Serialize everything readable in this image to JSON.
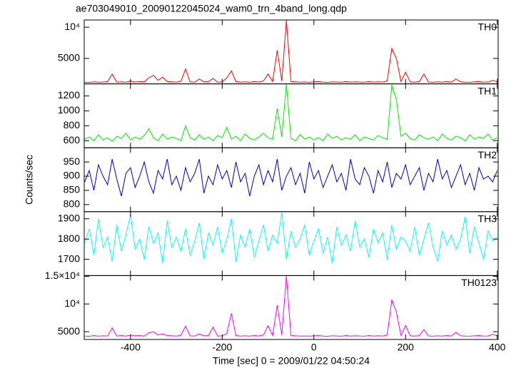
{
  "chart_data": {
    "type": "line",
    "title": "ae703049010_20090122045024_wam0_trn_4band_long.qdp",
    "xlabel": "Time [sec] 0 = 2009/01/22 04:50:24",
    "ylabel": "Counts/sec",
    "xlim": [
      -501,
      402
    ],
    "xticks": [
      -400,
      -200,
      0,
      200,
      400
    ],
    "x": [
      -500,
      -490,
      -480,
      -470,
      -460,
      -450,
      -440,
      -430,
      -420,
      -410,
      -400,
      -390,
      -380,
      -370,
      -360,
      -350,
      -340,
      -330,
      -320,
      -310,
      -300,
      -290,
      -280,
      -270,
      -260,
      -250,
      -240,
      -230,
      -220,
      -210,
      -200,
      -190,
      -180,
      -170,
      -160,
      -150,
      -140,
      -130,
      -120,
      -110,
      -100,
      -90,
      -80,
      -70,
      -60,
      -50,
      -40,
      -30,
      -20,
      -10,
      0,
      10,
      20,
      30,
      40,
      50,
      60,
      70,
      80,
      90,
      100,
      110,
      120,
      130,
      140,
      150,
      160,
      170,
      180,
      190,
      200,
      210,
      220,
      230,
      240,
      250,
      260,
      270,
      280,
      290,
      300,
      310,
      320,
      330,
      340,
      350,
      360,
      370,
      380,
      390,
      400
    ],
    "series": [
      {
        "name": "TH0",
        "color": "#ff0000",
        "ylim": [
          930,
          11160
        ],
        "yticks": [
          5000,
          {
            "value": 10000,
            "label": "10⁴"
          }
        ],
        "values": [
          1200,
          1150,
          1250,
          1180,
          1220,
          1300,
          2500,
          1200,
          1250,
          1180,
          1400,
          1220,
          1300,
          1250,
          1900,
          2300,
          1500,
          2000,
          1300,
          1250,
          1200,
          1350,
          3300,
          1250,
          1200,
          1700,
          1250,
          1300,
          1800,
          1200,
          1250,
          1900,
          3000,
          1300,
          1200,
          1250,
          1180,
          1300,
          1220,
          1400,
          2500,
          1300,
          6300,
          1400,
          11100,
          1300,
          1250,
          1200,
          1220,
          1180,
          1250,
          1300,
          1200,
          1150,
          1250,
          1220,
          1180,
          1300,
          1200,
          1250,
          1220,
          1180,
          1300,
          1200,
          1250,
          1220,
          1400,
          6600,
          5000,
          1300,
          2800,
          1250,
          1200,
          1300,
          2500,
          1220,
          1180,
          1250,
          1200,
          1300,
          1220,
          1700,
          1250,
          1200,
          1180,
          1250,
          1300,
          1200,
          1220,
          1500,
          1250
        ]
      },
      {
        "name": "TH1",
        "color": "#00ee00",
        "ylim": [
          505,
          1362
        ],
        "yticks": [
          600,
          800,
          1000,
          1200
        ],
        "values": [
          620,
          650,
          600,
          680,
          610,
          640,
          590,
          660,
          630,
          700,
          610,
          650,
          620,
          670,
          760,
          640,
          600,
          690,
          620,
          650,
          630,
          600,
          800,
          640,
          610,
          680,
          620,
          650,
          600,
          670,
          640,
          780,
          620,
          660,
          600,
          690,
          630,
          610,
          650,
          700,
          640,
          620,
          1030,
          650,
          1360,
          630,
          600,
          680,
          620,
          650,
          610,
          640,
          600,
          690,
          630,
          660,
          610,
          640,
          620,
          680,
          600,
          650,
          630,
          610,
          670,
          640,
          620,
          1350,
          1150,
          660,
          700,
          630,
          610,
          680,
          640,
          620,
          650,
          600,
          690,
          630,
          610,
          660,
          640,
          600,
          680,
          620,
          650,
          630,
          690,
          610,
          640
        ]
      },
      {
        "name": "TH2",
        "color": "#0000cc",
        "ylim": [
          775,
          1000
        ],
        "yticks": [
          800,
          850,
          900,
          950
        ],
        "values": [
          880,
          920,
          850,
          940,
          900,
          870,
          960,
          890,
          830,
          910,
          930,
          860,
          900,
          950,
          880,
          840,
          920,
          890,
          960,
          870,
          900,
          850,
          930,
          880,
          910,
          960,
          840,
          900,
          870,
          940,
          890,
          920,
          860,
          950,
          880,
          910,
          830,
          900,
          940,
          870,
          920,
          880,
          960,
          850,
          900,
          930,
          870,
          910,
          840,
          950,
          890,
          920,
          860,
          900,
          940,
          880,
          910,
          850,
          960,
          890,
          870,
          930,
          900,
          840,
          920,
          880,
          950,
          860,
          910,
          890,
          940,
          870,
          900,
          930,
          850,
          910,
          880,
          960,
          890,
          920,
          860,
          900,
          940,
          870,
          910,
          850,
          930,
          890,
          900,
          880,
          920
        ]
      },
      {
        "name": "TH3",
        "color": "#00ffff",
        "ylim": [
          1620,
          1935
        ],
        "yticks": [
          1700,
          1800,
          1900
        ],
        "values": [
          1780,
          1850,
          1720,
          1900,
          1760,
          1810,
          1690,
          1870,
          1740,
          1820,
          1920,
          1750,
          1800,
          1700,
          1860,
          1780,
          1830,
          1680,
          1890,
          1760,
          1810,
          1740,
          1850,
          1720,
          1790,
          1880,
          1700,
          1830,
          1770,
          1860,
          1730,
          1800,
          1900,
          1690,
          1820,
          1760,
          1850,
          1710,
          1790,
          1870,
          1740,
          1820,
          1780,
          1930,
          1700,
          1840,
          1760,
          1800,
          1870,
          1720,
          1790,
          1850,
          1730,
          1810,
          1680,
          1860,
          1770,
          1820,
          1740,
          1890,
          1760,
          1800,
          1710,
          1850,
          1780,
          1830,
          1700,
          1870,
          1750,
          1810,
          1790,
          1740,
          1860,
          1720,
          1800,
          1880,
          1760,
          1690,
          1840,
          1770,
          1820,
          1750,
          1800,
          1910,
          1730,
          1860,
          1780,
          1700,
          1840,
          1790,
          1810
        ]
      },
      {
        "name": "TH0123",
        "color": "#ff00ff",
        "ylim": [
          3590,
          15130
        ],
        "yticks": [
          5000,
          {
            "value": 10000,
            "label": "10⁴"
          },
          {
            "value": 15000,
            "label": "1.5×10⁴"
          }
        ],
        "values": [
          4200,
          4150,
          4300,
          4180,
          4250,
          4220,
          5700,
          4200,
          4300,
          4180,
          4400,
          4250,
          4300,
          4200,
          4800,
          5000,
          4400,
          4600,
          4300,
          4250,
          4200,
          4350,
          6000,
          4250,
          4200,
          4600,
          4250,
          4300,
          5800,
          4200,
          4250,
          4700,
          8300,
          4300,
          4200,
          4250,
          4180,
          4300,
          4220,
          4400,
          6100,
          4300,
          9800,
          4400,
          15100,
          4300,
          4250,
          4200,
          4220,
          4180,
          4250,
          4300,
          4200,
          4150,
          4250,
          4220,
          4180,
          4300,
          4200,
          4250,
          4220,
          4180,
          4300,
          4200,
          4250,
          4220,
          4400,
          10800,
          8500,
          4300,
          6100,
          4250,
          4200,
          4300,
          5400,
          4220,
          4180,
          4250,
          4200,
          4300,
          4220,
          4900,
          4250,
          4200,
          4180,
          4250,
          4300,
          4200,
          4220,
          4500,
          4250
        ]
      }
    ]
  }
}
